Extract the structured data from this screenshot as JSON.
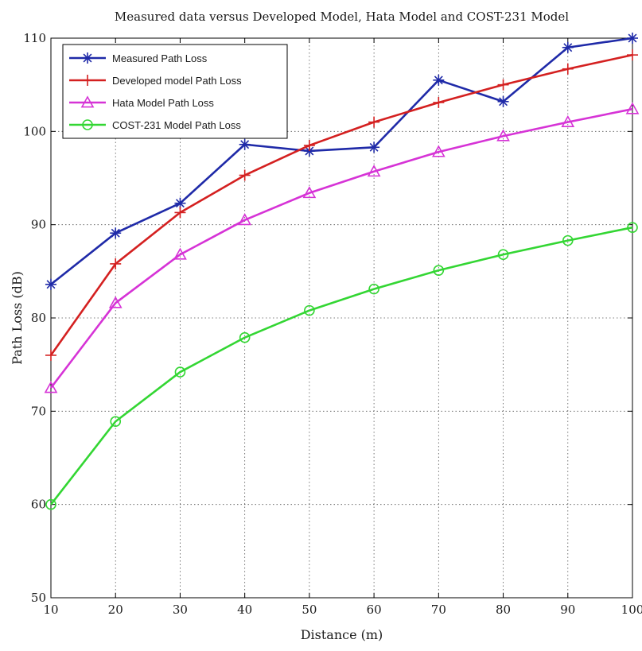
{
  "chart_data": {
    "type": "line",
    "title": "Measured data versus Developed Model, Hata Model and COST-231 Model",
    "xlabel": "Distance (m)",
    "ylabel": "Path Loss (dB)",
    "xlim": [
      10,
      100
    ],
    "ylim": [
      50,
      110
    ],
    "xticks": [
      "10",
      "20",
      "30",
      "40",
      "50",
      "60",
      "70",
      "80",
      "90",
      "100"
    ],
    "yticks": [
      "50",
      "60",
      "70",
      "80",
      "90",
      "100",
      "110"
    ],
    "grid": true,
    "legend_position": "top-left",
    "x": [
      10,
      20,
      30,
      40,
      50,
      60,
      70,
      80,
      90,
      100
    ],
    "series": [
      {
        "name": "Measured Path Loss",
        "color": "#1f2aa8",
        "marker": "star",
        "values": [
          83.6,
          89.1,
          92.3,
          98.6,
          97.9,
          98.3,
          105.5,
          103.2,
          109.0,
          110.0
        ]
      },
      {
        "name": "Developed model Path Loss",
        "color": "#d42020",
        "marker": "plus",
        "values": [
          76.0,
          85.8,
          91.3,
          95.3,
          98.5,
          101.0,
          103.1,
          105.0,
          106.7,
          108.2
        ]
      },
      {
        "name": "Hata Model Path Loss",
        "color": "#d633d6",
        "marker": "triangle",
        "values": [
          72.5,
          81.6,
          86.8,
          90.5,
          93.4,
          95.7,
          97.8,
          99.5,
          101.0,
          102.4
        ]
      },
      {
        "name": "COST-231 Model Path Loss",
        "color": "#33d633",
        "marker": "circle",
        "values": [
          60.0,
          68.9,
          74.2,
          77.9,
          80.8,
          83.1,
          85.1,
          86.8,
          88.3,
          89.7
        ]
      }
    ]
  }
}
